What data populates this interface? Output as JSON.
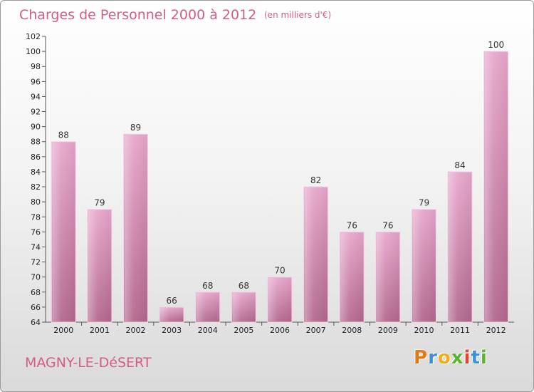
{
  "chart_data": {
    "type": "bar",
    "title": "Charges de Personnel 2000 à 2012",
    "subtitle": "(en milliers d'€)",
    "categories": [
      "2000",
      "2001",
      "2002",
      "2003",
      "2004",
      "2005",
      "2006",
      "2007",
      "2008",
      "2009",
      "2010",
      "2011",
      "2012"
    ],
    "values": [
      88,
      79,
      89,
      66,
      68,
      68,
      70,
      82,
      76,
      76,
      79,
      84,
      100
    ],
    "ylim": [
      64,
      102
    ],
    "yticks": [
      64,
      66,
      68,
      70,
      72,
      74,
      76,
      78,
      80,
      82,
      84,
      86,
      88,
      90,
      92,
      94,
      96,
      98,
      100,
      102
    ],
    "grid": false,
    "bar_color": "#d98bb6"
  },
  "footer": {
    "town": "MAGNY-LE-DéSERT",
    "brand": "Proxiti",
    "brand_colors": [
      "#e27a1b",
      "#3d8fd6",
      "#f1ad1a",
      "#5cb531",
      "#e2452f",
      "#3d8fd6",
      "#5cb531"
    ]
  }
}
